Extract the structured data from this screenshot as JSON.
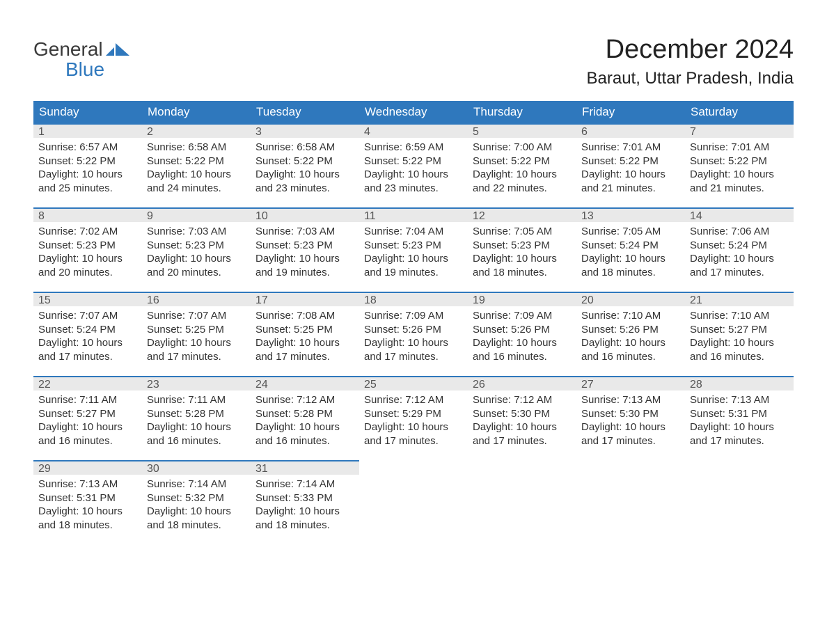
{
  "brand": {
    "line1": "General",
    "line2": "Blue",
    "mark_color": "#2f78bd",
    "text_color_dark": "#3a3a3a",
    "text_color_blue": "#2f78bd"
  },
  "title": "December 2024",
  "location": "Baraut, Uttar Pradesh, India",
  "colors": {
    "header_bg": "#2f78bd",
    "header_text": "#ffffff",
    "daynum_bg": "#e9e9e9",
    "daynum_border": "#2f78bd",
    "body_text": "#333333",
    "page_bg": "#ffffff"
  },
  "day_names": [
    "Sunday",
    "Monday",
    "Tuesday",
    "Wednesday",
    "Thursday",
    "Friday",
    "Saturday"
  ],
  "weeks": [
    [
      {
        "n": "1",
        "sunrise": "Sunrise: 6:57 AM",
        "sunset": "Sunset: 5:22 PM",
        "daylight1": "Daylight: 10 hours",
        "daylight2": "and 25 minutes."
      },
      {
        "n": "2",
        "sunrise": "Sunrise: 6:58 AM",
        "sunset": "Sunset: 5:22 PM",
        "daylight1": "Daylight: 10 hours",
        "daylight2": "and 24 minutes."
      },
      {
        "n": "3",
        "sunrise": "Sunrise: 6:58 AM",
        "sunset": "Sunset: 5:22 PM",
        "daylight1": "Daylight: 10 hours",
        "daylight2": "and 23 minutes."
      },
      {
        "n": "4",
        "sunrise": "Sunrise: 6:59 AM",
        "sunset": "Sunset: 5:22 PM",
        "daylight1": "Daylight: 10 hours",
        "daylight2": "and 23 minutes."
      },
      {
        "n": "5",
        "sunrise": "Sunrise: 7:00 AM",
        "sunset": "Sunset: 5:22 PM",
        "daylight1": "Daylight: 10 hours",
        "daylight2": "and 22 minutes."
      },
      {
        "n": "6",
        "sunrise": "Sunrise: 7:01 AM",
        "sunset": "Sunset: 5:22 PM",
        "daylight1": "Daylight: 10 hours",
        "daylight2": "and 21 minutes."
      },
      {
        "n": "7",
        "sunrise": "Sunrise: 7:01 AM",
        "sunset": "Sunset: 5:22 PM",
        "daylight1": "Daylight: 10 hours",
        "daylight2": "and 21 minutes."
      }
    ],
    [
      {
        "n": "8",
        "sunrise": "Sunrise: 7:02 AM",
        "sunset": "Sunset: 5:23 PM",
        "daylight1": "Daylight: 10 hours",
        "daylight2": "and 20 minutes."
      },
      {
        "n": "9",
        "sunrise": "Sunrise: 7:03 AM",
        "sunset": "Sunset: 5:23 PM",
        "daylight1": "Daylight: 10 hours",
        "daylight2": "and 20 minutes."
      },
      {
        "n": "10",
        "sunrise": "Sunrise: 7:03 AM",
        "sunset": "Sunset: 5:23 PM",
        "daylight1": "Daylight: 10 hours",
        "daylight2": "and 19 minutes."
      },
      {
        "n": "11",
        "sunrise": "Sunrise: 7:04 AM",
        "sunset": "Sunset: 5:23 PM",
        "daylight1": "Daylight: 10 hours",
        "daylight2": "and 19 minutes."
      },
      {
        "n": "12",
        "sunrise": "Sunrise: 7:05 AM",
        "sunset": "Sunset: 5:23 PM",
        "daylight1": "Daylight: 10 hours",
        "daylight2": "and 18 minutes."
      },
      {
        "n": "13",
        "sunrise": "Sunrise: 7:05 AM",
        "sunset": "Sunset: 5:24 PM",
        "daylight1": "Daylight: 10 hours",
        "daylight2": "and 18 minutes."
      },
      {
        "n": "14",
        "sunrise": "Sunrise: 7:06 AM",
        "sunset": "Sunset: 5:24 PM",
        "daylight1": "Daylight: 10 hours",
        "daylight2": "and 17 minutes."
      }
    ],
    [
      {
        "n": "15",
        "sunrise": "Sunrise: 7:07 AM",
        "sunset": "Sunset: 5:24 PM",
        "daylight1": "Daylight: 10 hours",
        "daylight2": "and 17 minutes."
      },
      {
        "n": "16",
        "sunrise": "Sunrise: 7:07 AM",
        "sunset": "Sunset: 5:25 PM",
        "daylight1": "Daylight: 10 hours",
        "daylight2": "and 17 minutes."
      },
      {
        "n": "17",
        "sunrise": "Sunrise: 7:08 AM",
        "sunset": "Sunset: 5:25 PM",
        "daylight1": "Daylight: 10 hours",
        "daylight2": "and 17 minutes."
      },
      {
        "n": "18",
        "sunrise": "Sunrise: 7:09 AM",
        "sunset": "Sunset: 5:26 PM",
        "daylight1": "Daylight: 10 hours",
        "daylight2": "and 17 minutes."
      },
      {
        "n": "19",
        "sunrise": "Sunrise: 7:09 AM",
        "sunset": "Sunset: 5:26 PM",
        "daylight1": "Daylight: 10 hours",
        "daylight2": "and 16 minutes."
      },
      {
        "n": "20",
        "sunrise": "Sunrise: 7:10 AM",
        "sunset": "Sunset: 5:26 PM",
        "daylight1": "Daylight: 10 hours",
        "daylight2": "and 16 minutes."
      },
      {
        "n": "21",
        "sunrise": "Sunrise: 7:10 AM",
        "sunset": "Sunset: 5:27 PM",
        "daylight1": "Daylight: 10 hours",
        "daylight2": "and 16 minutes."
      }
    ],
    [
      {
        "n": "22",
        "sunrise": "Sunrise: 7:11 AM",
        "sunset": "Sunset: 5:27 PM",
        "daylight1": "Daylight: 10 hours",
        "daylight2": "and 16 minutes."
      },
      {
        "n": "23",
        "sunrise": "Sunrise: 7:11 AM",
        "sunset": "Sunset: 5:28 PM",
        "daylight1": "Daylight: 10 hours",
        "daylight2": "and 16 minutes."
      },
      {
        "n": "24",
        "sunrise": "Sunrise: 7:12 AM",
        "sunset": "Sunset: 5:28 PM",
        "daylight1": "Daylight: 10 hours",
        "daylight2": "and 16 minutes."
      },
      {
        "n": "25",
        "sunrise": "Sunrise: 7:12 AM",
        "sunset": "Sunset: 5:29 PM",
        "daylight1": "Daylight: 10 hours",
        "daylight2": "and 17 minutes."
      },
      {
        "n": "26",
        "sunrise": "Sunrise: 7:12 AM",
        "sunset": "Sunset: 5:30 PM",
        "daylight1": "Daylight: 10 hours",
        "daylight2": "and 17 minutes."
      },
      {
        "n": "27",
        "sunrise": "Sunrise: 7:13 AM",
        "sunset": "Sunset: 5:30 PM",
        "daylight1": "Daylight: 10 hours",
        "daylight2": "and 17 minutes."
      },
      {
        "n": "28",
        "sunrise": "Sunrise: 7:13 AM",
        "sunset": "Sunset: 5:31 PM",
        "daylight1": "Daylight: 10 hours",
        "daylight2": "and 17 minutes."
      }
    ],
    [
      {
        "n": "29",
        "sunrise": "Sunrise: 7:13 AM",
        "sunset": "Sunset: 5:31 PM",
        "daylight1": "Daylight: 10 hours",
        "daylight2": "and 18 minutes."
      },
      {
        "n": "30",
        "sunrise": "Sunrise: 7:14 AM",
        "sunset": "Sunset: 5:32 PM",
        "daylight1": "Daylight: 10 hours",
        "daylight2": "and 18 minutes."
      },
      {
        "n": "31",
        "sunrise": "Sunrise: 7:14 AM",
        "sunset": "Sunset: 5:33 PM",
        "daylight1": "Daylight: 10 hours",
        "daylight2": "and 18 minutes."
      },
      null,
      null,
      null,
      null
    ]
  ]
}
